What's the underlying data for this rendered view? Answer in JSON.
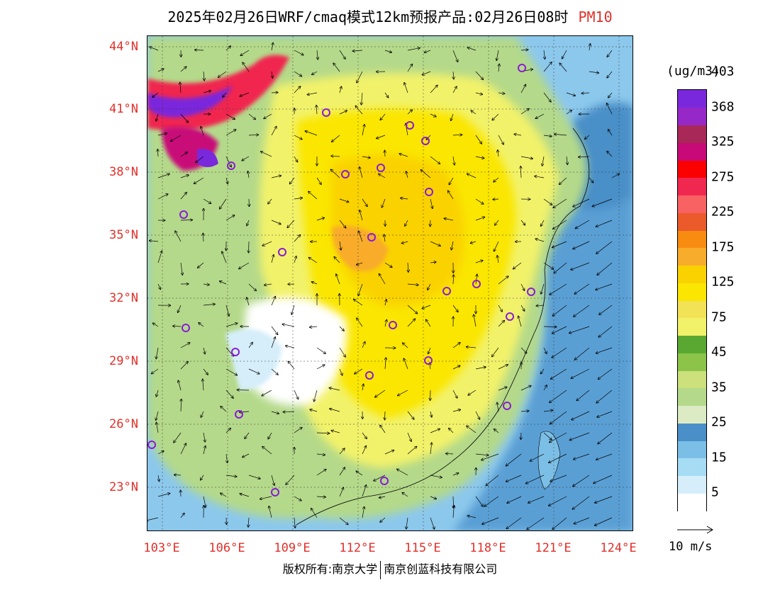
{
  "title": {
    "text": "2025年02月26日WRF/cmaq模式12km预报产品:02月26日08时",
    "pollutant": "PM10"
  },
  "map": {
    "lat_labels": [
      "44°N",
      "41°N",
      "38°N",
      "35°N",
      "32°N",
      "29°N",
      "26°N",
      "23°N"
    ],
    "lon_labels": [
      "103°E",
      "106°E",
      "109°E",
      "112°E",
      "115°E",
      "118°E",
      "121°E",
      "124°E"
    ],
    "lat_range": [
      21,
      44.3
    ],
    "lon_range": [
      102.8,
      124.0
    ]
  },
  "legend": {
    "unit": "(ug/m3)",
    "colors": [
      "#ffffff",
      "#d6eefa",
      "#a6dcf4",
      "#7cbfe6",
      "#4a8fc8",
      "#dcebc4",
      "#b4d98a",
      "#cce07c",
      "#8cc44a",
      "#5aa832",
      "#f2f26a",
      "#f2e256",
      "#fae600",
      "#fad200",
      "#f8ac2c",
      "#f88c10",
      "#ea5a2a",
      "#f86262",
      "#f02850",
      "#fa0000",
      "#c80a78",
      "#a82858",
      "#9628c8",
      "#7a28dc"
    ],
    "labels": [
      "5",
      "15",
      "25",
      "35",
      "45",
      "75",
      "125",
      "175",
      "225",
      "275",
      "325",
      "368",
      "403"
    ]
  },
  "wind": {
    "label": "10 m/s"
  },
  "credit": {
    "left": "版权所有:南京大学",
    "right": "南京创蓝科技有限公司"
  }
}
